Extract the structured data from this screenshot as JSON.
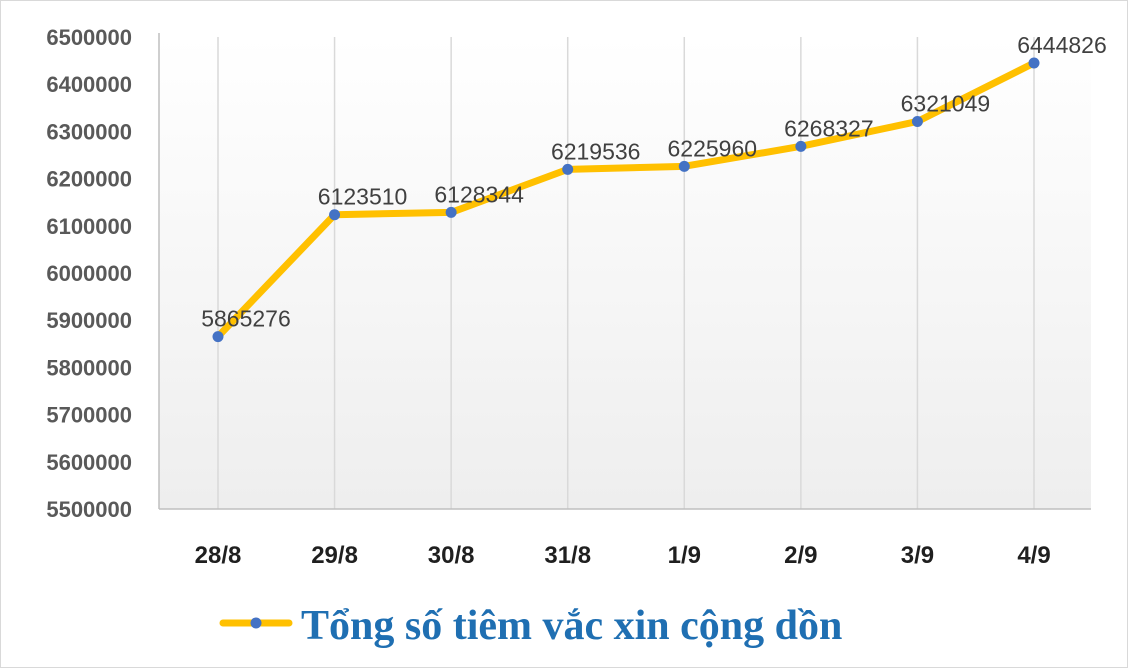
{
  "chart_data": {
    "type": "line",
    "title": "",
    "xlabel": "",
    "ylabel": "",
    "categories": [
      "28/8",
      "29/8",
      "30/8",
      "31/8",
      "1/9",
      "2/9",
      "3/9",
      "4/9"
    ],
    "series": [
      {
        "name": "Tổng số tiêm vắc xin cộng dồn",
        "values": [
          5865276,
          6123510,
          6128344,
          6219536,
          6225960,
          6268327,
          6321049,
          6444826
        ]
      }
    ],
    "ylim": [
      5500000,
      6500000
    ],
    "yticks": [
      5500000,
      5600000,
      5700000,
      5800000,
      5900000,
      6000000,
      6100000,
      6200000,
      6300000,
      6400000,
      6500000
    ],
    "grid": "vertical",
    "legend_position": "bottom",
    "line_color": "#ffc000",
    "marker_color": "#4472c4",
    "data_labels": true
  }
}
